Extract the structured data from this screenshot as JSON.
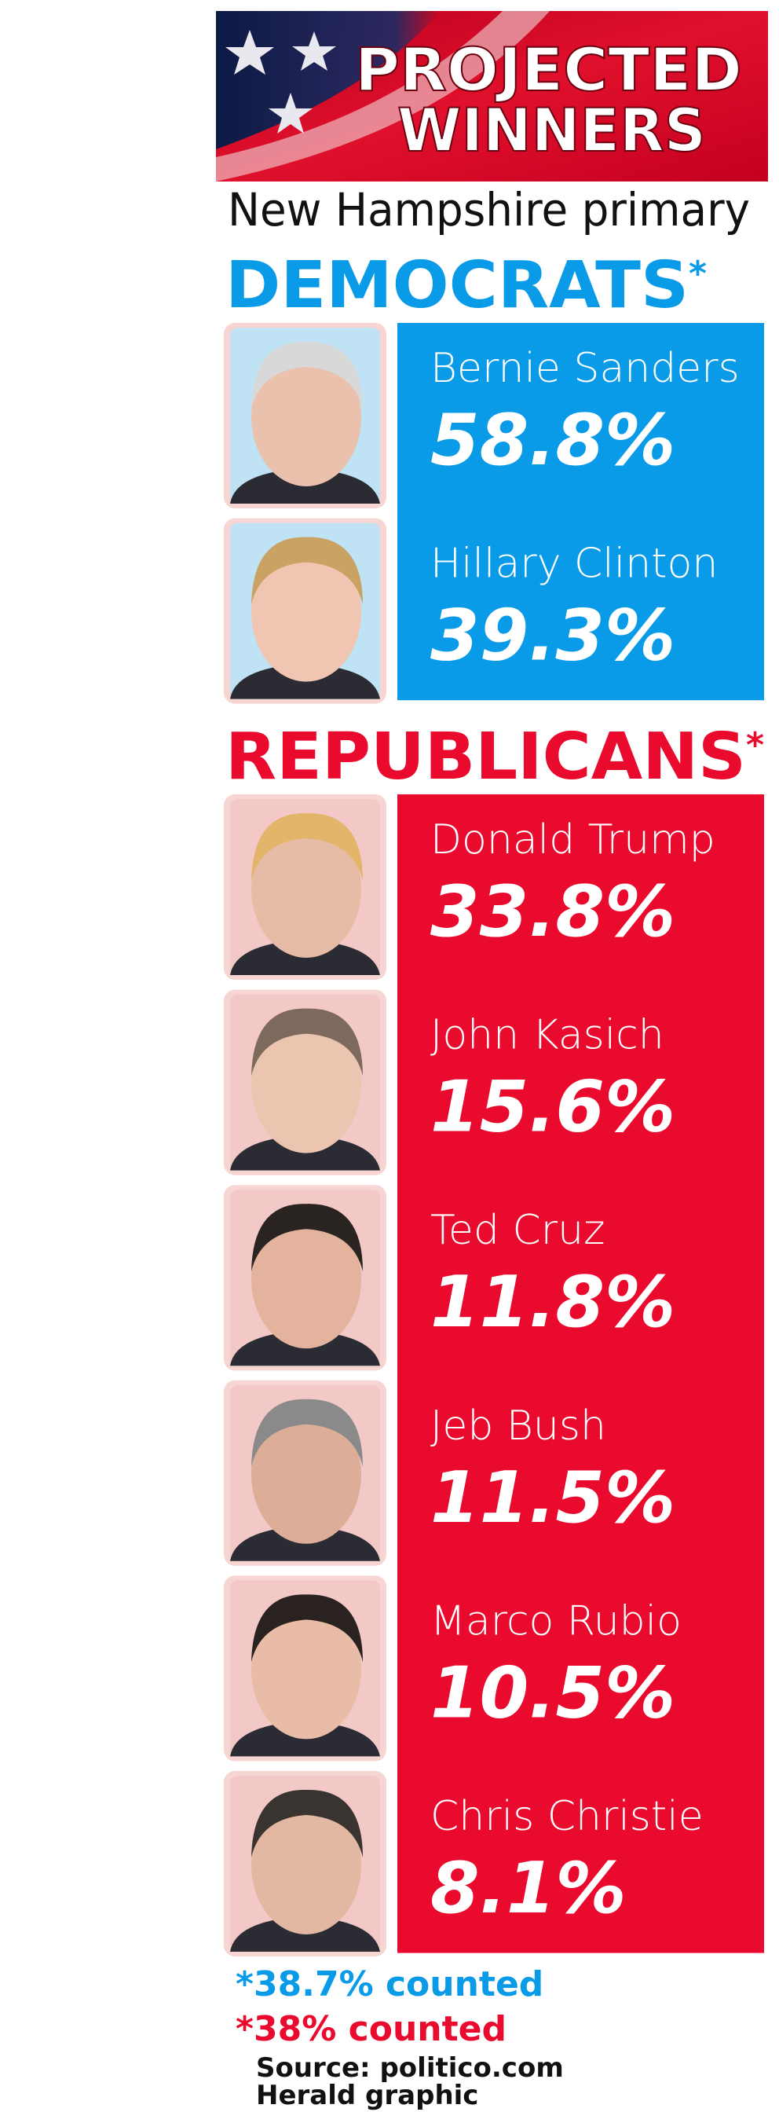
{
  "header": {
    "title_lines": [
      "PROJECTED",
      "WINNERS"
    ],
    "subtitle": "New Hampshire primary"
  },
  "parties": [
    {
      "name": "DEMOCRATS",
      "marker": "*",
      "color": "#0a9be8",
      "note": "*38.7% counted",
      "candidates": [
        {
          "name": "Bernie Sanders",
          "share": "58.8%"
        },
        {
          "name": "Hillary Clinton",
          "share": "39.3%"
        }
      ]
    },
    {
      "name": "REPUBLICANS",
      "marker": "*",
      "color": "#ea0a2e",
      "note": "*38% counted",
      "candidates": [
        {
          "name": "Donald Trump",
          "share": "33.8%"
        },
        {
          "name": "John Kasich",
          "share": "15.6%"
        },
        {
          "name": "Ted Cruz",
          "share": "11.8%"
        },
        {
          "name": "Jeb Bush",
          "share": "11.5%"
        },
        {
          "name": "Marco Rubio",
          "share": "10.5%"
        },
        {
          "name": "Chris Christie",
          "share": "8.1%"
        }
      ]
    }
  ],
  "footer": {
    "source": "Source: politico.com",
    "credit": "Herald graphic"
  }
}
